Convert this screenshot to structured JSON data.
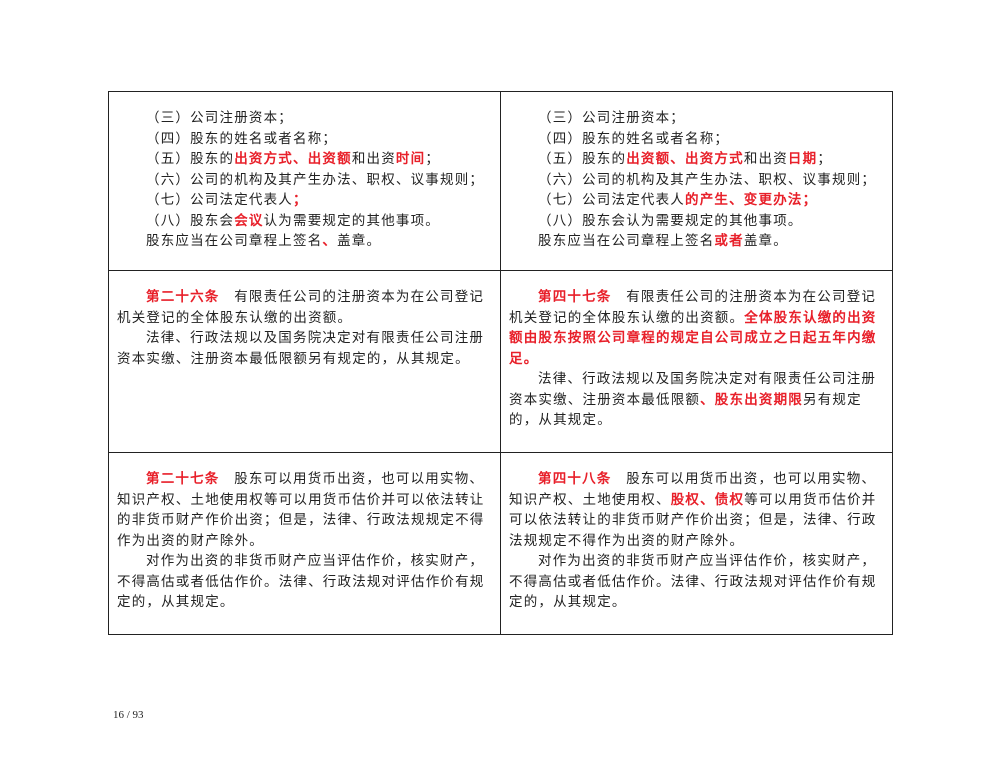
{
  "rows": [
    {
      "height": 179,
      "left": [
        [
          [
            {
              "t": "（三）公司注册资本；"
            }
          ]
        ],
        [
          [
            {
              "t": "（四）股东的姓名或者名称；"
            }
          ]
        ],
        [
          [
            {
              "t": "（五）股东的"
            },
            {
              "t": "出资方式、出资额",
              "r": 1
            },
            {
              "t": "和出资"
            },
            {
              "t": "时间",
              "r": 1
            },
            {
              "t": "；"
            }
          ]
        ],
        [
          [
            {
              "t": "（六）公司的机构及其产生办法、职权、议事规则；"
            }
          ]
        ],
        [
          [
            {
              "t": "（七）公司法定代表人"
            },
            {
              "t": "；",
              "r": 1
            }
          ]
        ],
        [
          [
            {
              "t": "（八）股东会"
            },
            {
              "t": "会议",
              "r": 1
            },
            {
              "t": "认为需要规定的其他事项。"
            }
          ]
        ],
        [
          [
            {
              "t": "股东应当在公司章程上签名"
            },
            {
              "t": "、",
              "r": 1
            },
            {
              "t": "盖章。"
            }
          ]
        ]
      ],
      "right": [
        [
          [
            {
              "t": "（三）公司注册资本；"
            }
          ]
        ],
        [
          [
            {
              "t": "（四）股东的姓名或者名称；"
            }
          ]
        ],
        [
          [
            {
              "t": "（五）股东的"
            },
            {
              "t": "出资额、出资方式",
              "r": 1
            },
            {
              "t": "和出资"
            },
            {
              "t": "日期",
              "r": 1
            },
            {
              "t": "；"
            }
          ]
        ],
        [
          [
            {
              "t": "（六）公司的机构及其产生办法、职权、议事规则；"
            }
          ]
        ],
        [
          [
            {
              "t": "（七）公司法定代表人"
            },
            {
              "t": "的产生、变更办法；",
              "r": 1
            }
          ]
        ],
        [
          [
            {
              "t": "（八）股东会认为需要规定的其他事项。"
            }
          ]
        ],
        [
          [
            {
              "t": "股东应当在公司章程上签名"
            },
            {
              "t": "或者",
              "r": 1
            },
            {
              "t": "盖章。"
            }
          ]
        ]
      ]
    },
    {
      "height": 181,
      "left": [
        [
          [
            {
              "t": "第二十六条",
              "r": 1
            },
            {
              "t": "　有限责任公司的注册资本为在公司登记"
            }
          ],
          [
            {
              "t": "机关登记的全体股东认缴的出资额。"
            }
          ]
        ],
        [
          [
            {
              "t": "法律、行政法规以及国务院决定对有限责任公司注册"
            }
          ],
          [
            {
              "t": "资本实缴、注册资本最低限额另有规定的，从其规定。"
            }
          ]
        ]
      ],
      "right": [
        [
          [
            {
              "t": "第四十七条",
              "r": 1
            },
            {
              "t": "　有限责任公司的注册资本为在公司登记"
            }
          ],
          [
            {
              "t": "机关登记的全体股东认缴的出资额。"
            },
            {
              "t": "全体股东认缴的出资",
              "r": 1
            }
          ],
          [
            {
              "t": "额由股东按照公司章程的规定自公司成立之日起五年内缴",
              "r": 1
            }
          ],
          [
            {
              "t": "足。",
              "r": 1
            }
          ]
        ],
        [
          [
            {
              "t": "法律、行政法规以及国务院决定对有限责任公司注册"
            }
          ],
          [
            {
              "t": "资本实缴、注册资本最低限额"
            },
            {
              "t": "、股东出资期限",
              "r": 1
            },
            {
              "t": "另有规定"
            }
          ],
          [
            {
              "t": "的，从其规定。"
            }
          ]
        ]
      ]
    },
    {
      "height": 181,
      "left": [
        [
          [
            {
              "t": "第二十七条",
              "r": 1
            },
            {
              "t": "　股东可以用货币出资，也可以用实物、"
            }
          ],
          [
            {
              "t": "知识产权、土地使用权等可以用货币估价并可以依法转让"
            }
          ],
          [
            {
              "t": "的非货币财产作价出资；但是，法律、行政法规规定不得"
            }
          ],
          [
            {
              "t": "作为出资的财产除外。"
            }
          ]
        ],
        [
          [
            {
              "t": "对作为出资的非货币财产应当评估作价，核实财产，"
            }
          ],
          [
            {
              "t": "不得高估或者低估作价。法律、行政法规对评估作价有规"
            }
          ],
          [
            {
              "t": "定的，从其规定。"
            }
          ]
        ]
      ],
      "right": [
        [
          [
            {
              "t": "第四十八条",
              "r": 1
            },
            {
              "t": "　股东可以用货币出资，也可以用实物、"
            }
          ],
          [
            {
              "t": "知识产权、土地使用权、"
            },
            {
              "t": "股权、债权",
              "r": 1
            },
            {
              "t": "等可以用货币估价并"
            }
          ],
          [
            {
              "t": "可以依法转让的非货币财产作价出资；但是，法律、行政"
            }
          ],
          [
            {
              "t": "法规规定不得作为出资的财产除外。"
            }
          ]
        ],
        [
          [
            {
              "t": "对作为出资的非货币财产应当评估作价，核实财产，"
            }
          ],
          [
            {
              "t": "不得高估或者低估作价。法律、行政法规对评估作价有规"
            }
          ],
          [
            {
              "t": "定的，从其规定。"
            }
          ]
        ]
      ]
    }
  ],
  "highlight_color": "#e8202a",
  "page_number": "16 / 93"
}
